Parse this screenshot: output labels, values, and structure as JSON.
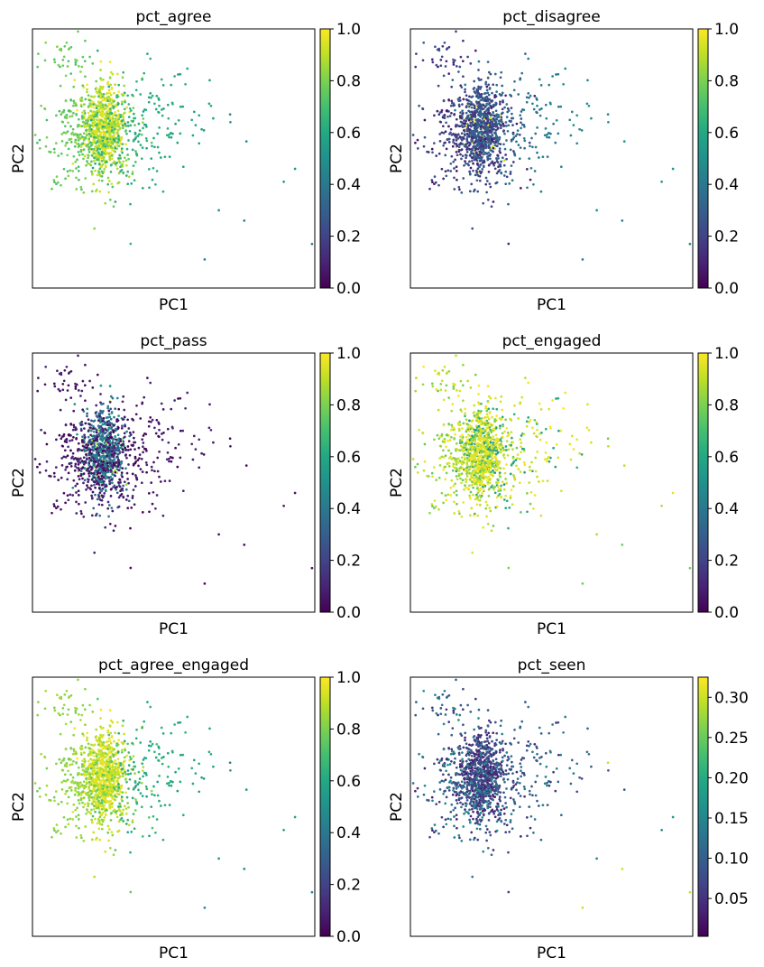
{
  "chart_data": [
    {
      "type": "scatter",
      "title": "pct_agree",
      "xlabel": "PC1",
      "ylabel": "PC2",
      "colormap": "viridis",
      "color_range": [
        0.0,
        1.0
      ],
      "colorbar_ticks": [
        "0.0",
        "0.2",
        "0.4",
        "0.6",
        "0.8",
        "1.0"
      ],
      "colorbar_tick_values": [
        0.0,
        0.2,
        0.4,
        0.6,
        0.8,
        1.0
      ],
      "point_count_approx": 1200,
      "outlier_points": [
        {
          "x": 0.89,
          "y": 0.41,
          "value": 0.5
        },
        {
          "x": 0.66,
          "y": 0.3,
          "value": 0.48
        },
        {
          "x": 0.61,
          "y": 0.11,
          "value": 0.46
        },
        {
          "x": 0.99,
          "y": 0.17,
          "value": 0.45
        },
        {
          "x": 0.93,
          "y": 0.46,
          "value": 0.47
        },
        {
          "x": 0.75,
          "y": 0.26,
          "value": 0.5
        },
        {
          "x": 0.7,
          "y": 0.67,
          "value": 0.52
        }
      ],
      "color_distribution": "dense core near 0.8-1.0, left edge ~0.7-0.8, right tail ~0.4-0.55"
    },
    {
      "type": "scatter",
      "title": "pct_disagree",
      "xlabel": "PC1",
      "ylabel": "PC2",
      "colormap": "viridis",
      "color_range": [
        0.0,
        1.0
      ],
      "colorbar_ticks": [
        "0.0",
        "0.2",
        "0.4",
        "0.6",
        "0.8",
        "1.0"
      ],
      "colorbar_tick_values": [
        0.0,
        0.2,
        0.4,
        0.6,
        0.8,
        1.0
      ],
      "point_count_approx": 1200,
      "outlier_points": [
        {
          "x": 0.89,
          "y": 0.41,
          "value": 0.4
        },
        {
          "x": 0.66,
          "y": 0.3,
          "value": 0.45
        },
        {
          "x": 0.61,
          "y": 0.11,
          "value": 0.48
        },
        {
          "x": 0.99,
          "y": 0.17,
          "value": 0.5
        }
      ],
      "color_distribution": "mostly 0.1-0.3, right tail ~0.45-0.55, a few bright spots near 0.9"
    },
    {
      "type": "scatter",
      "title": "pct_pass",
      "xlabel": "PC1",
      "ylabel": "PC2",
      "colormap": "viridis",
      "color_range": [
        0.0,
        1.0
      ],
      "colorbar_ticks": [
        "0.0",
        "0.2",
        "0.4",
        "0.6",
        "0.8",
        "1.0"
      ],
      "colorbar_tick_values": [
        0.0,
        0.2,
        0.4,
        0.6,
        0.8,
        1.0
      ],
      "point_count_approx": 1200,
      "color_distribution": "mostly 0.0-0.15, dense core ~0.3-0.6, few bright points"
    },
    {
      "type": "scatter",
      "title": "pct_engaged",
      "xlabel": "PC1",
      "ylabel": "PC2",
      "colormap": "viridis",
      "color_range": [
        0.0,
        1.0
      ],
      "colorbar_ticks": [
        "0.0",
        "0.2",
        "0.4",
        "0.6",
        "0.8",
        "1.0"
      ],
      "colorbar_tick_values": [
        0.0,
        0.2,
        0.4,
        0.6,
        0.8,
        1.0
      ],
      "point_count_approx": 1200,
      "color_distribution": "mostly 0.85-1.0, core mixed 0.5-0.8"
    },
    {
      "type": "scatter",
      "title": "pct_agree_engaged",
      "xlabel": "PC1",
      "ylabel": "PC2",
      "colormap": "viridis",
      "color_range": [
        0.0,
        1.0
      ],
      "colorbar_ticks": [
        "0.0",
        "0.2",
        "0.4",
        "0.6",
        "0.8",
        "1.0"
      ],
      "colorbar_tick_values": [
        0.0,
        0.2,
        0.4,
        0.6,
        0.8,
        1.0
      ],
      "point_count_approx": 1200,
      "color_distribution": "core ~0.9-1.0, left edge ~0.8, right tail ~0.45-0.6"
    },
    {
      "type": "scatter",
      "title": "pct_seen",
      "xlabel": "PC1",
      "ylabel": "PC2",
      "colormap": "viridis",
      "color_range": [
        0.003,
        0.325
      ],
      "colorbar_ticks": [
        "0.05",
        "0.10",
        "0.15",
        "0.20",
        "0.25",
        "0.30"
      ],
      "colorbar_tick_values": [
        0.05,
        0.1,
        0.15,
        0.2,
        0.25,
        0.3
      ],
      "point_count_approx": 1200,
      "color_distribution": "mostly 0.03-0.12, a few bright outliers on the right ~0.3"
    }
  ]
}
